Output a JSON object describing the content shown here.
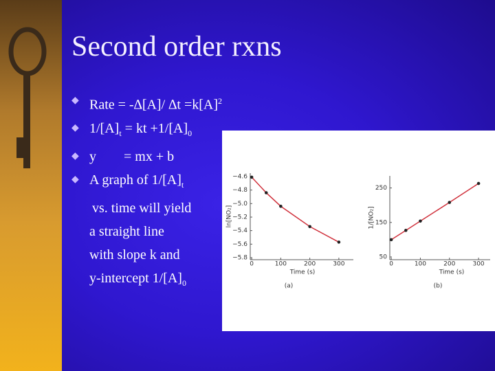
{
  "title": "Second order rxns",
  "bullets": [
    [
      "Rate = -∆[A]/ ∆t =k[A]",
      "2"
    ],
    [
      "1/[A]",
      "t",
      " = kt +1/[A]",
      "0"
    ],
    [
      "y        = mx + b"
    ],
    [
      "A graph of 1/[A]",
      "t",
      "vs. time will yield",
      "a straight line",
      "with slope k and",
      "y-intercept 1/[A]",
      "0"
    ]
  ],
  "chart_data": [
    {
      "type": "line",
      "caption": "(a)",
      "x_label": "Time (s)",
      "y_label": "ln[NO₂]",
      "x": [
        0,
        50,
        100,
        200,
        300
      ],
      "series": [
        {
          "color": "#d0313c",
          "values": [
            -4.61,
            -4.84,
            -5.04,
            -5.34,
            -5.57
          ]
        }
      ],
      "xlim": [
        -5,
        350
      ],
      "xticks": [
        0,
        100,
        200,
        300
      ],
      "ylim": [
        -5.83,
        -4.55
      ],
      "yticks": [
        {
          "value": -4.6,
          "label": "−4.6"
        },
        {
          "value": -4.8,
          "label": "−4.8"
        },
        {
          "value": -5.0,
          "label": "−5.0"
        },
        {
          "value": -5.2,
          "label": "−5.2"
        },
        {
          "value": -5.4,
          "label": "−5.4"
        },
        {
          "value": -5.6,
          "label": "−5.6"
        },
        {
          "value": -5.8,
          "label": "−5.8"
        }
      ]
    },
    {
      "type": "line",
      "caption": "(b)",
      "x_label": "Time (s)",
      "y_label": "1/[NO₂]",
      "x": [
        0,
        50,
        100,
        200,
        300
      ],
      "series": [
        {
          "color": "#d0313c",
          "values": [
            100,
            127,
            154,
            208,
            263
          ]
        }
      ],
      "xlim": [
        -5,
        340
      ],
      "xticks": [
        0,
        100,
        200,
        300
      ],
      "ylim": [
        42,
        285
      ],
      "yticks": [
        50,
        150,
        250
      ]
    }
  ]
}
